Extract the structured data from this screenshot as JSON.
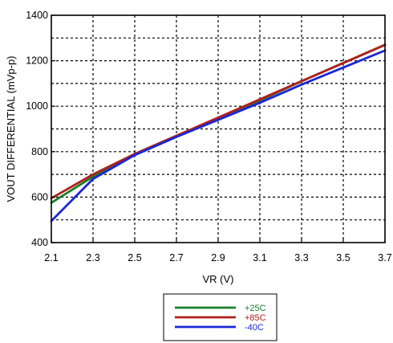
{
  "chart_data": {
    "type": "line",
    "xlabel": "VR (V)",
    "ylabel": "VOUT DIFFERENTIAL (mVp-p)",
    "xlim": [
      2.1,
      3.7
    ],
    "ylim": [
      400,
      1400
    ],
    "xticks": [
      "2.1",
      "2.3",
      "2.5",
      "2.7",
      "2.9",
      "3.1",
      "3.3",
      "3.5",
      "3.7"
    ],
    "yticks": [
      "400",
      "600",
      "800",
      "1000",
      "1200",
      "1400"
    ],
    "grid": true,
    "legend_position": "bottom-center",
    "series": [
      {
        "name": "+25C",
        "color": "#1a7f2a",
        "x": [
          2.1,
          2.3,
          2.5,
          2.7,
          2.9,
          3.1,
          3.3,
          3.5,
          3.7
        ],
        "y": [
          575,
          690,
          790,
          870,
          945,
          1025,
          1110,
          1190,
          1270
        ]
      },
      {
        "name": "+85C",
        "color": "#b0201c",
        "x": [
          2.1,
          2.3,
          2.5,
          2.7,
          2.9,
          3.1,
          3.3,
          3.5,
          3.7
        ],
        "y": [
          595,
          700,
          790,
          870,
          950,
          1030,
          1110,
          1190,
          1270
        ]
      },
      {
        "name": "-40C",
        "color": "#1a27d6",
        "x": [
          2.1,
          2.3,
          2.5,
          2.7,
          2.9,
          3.1,
          3.3,
          3.5,
          3.7
        ],
        "y": [
          495,
          680,
          785,
          865,
          940,
          1015,
          1095,
          1170,
          1245
        ]
      }
    ]
  }
}
